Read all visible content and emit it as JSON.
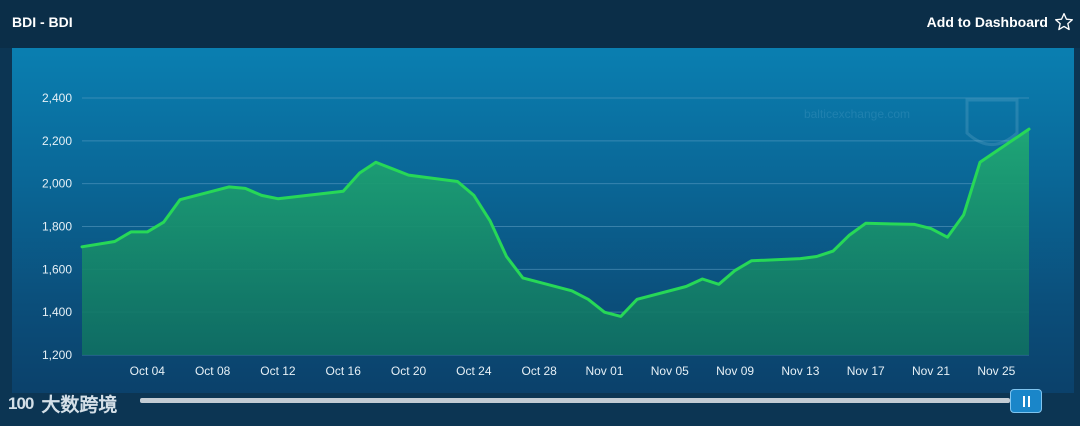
{
  "header": {
    "title": "BDI - BDI",
    "add_to_dashboard": "Add to Dashboard"
  },
  "watermark": {
    "site": "balticexchange.com"
  },
  "logo": {
    "mark": "100",
    "text": "大数跨境"
  },
  "colors": {
    "line": "#27d857",
    "area": "#1a9a6c",
    "grid": "#5d9ec4",
    "tick": "#e6f0f6"
  },
  "chart_data": {
    "type": "area",
    "title": "BDI - BDI",
    "xlabel": "",
    "ylabel": "",
    "ylim": [
      1200,
      2400
    ],
    "yticks": [
      1200,
      1400,
      1600,
      1800,
      2000,
      2200,
      2400
    ],
    "ytick_labels": [
      "1,200",
      "1,400",
      "1,600",
      "1,800",
      "2,000",
      "2,200",
      "2,400"
    ],
    "xticks": [
      "Oct 04",
      "Oct 08",
      "Oct 12",
      "Oct 16",
      "Oct 20",
      "Oct 24",
      "Oct 28",
      "Nov 01",
      "Nov 05",
      "Nov 09",
      "Nov 13",
      "Nov 17",
      "Nov 21",
      "Nov 25"
    ],
    "grid": true,
    "legend": "none",
    "series": [
      {
        "x": [
          "Sep 30",
          "Oct 02",
          "Oct 03",
          "Oct 04",
          "Oct 05",
          "Oct 06",
          "Oct 09",
          "Oct 10",
          "Oct 11",
          "Oct 12",
          "Oct 16",
          "Oct 17",
          "Oct 18",
          "Oct 19",
          "Oct 20",
          "Oct 23",
          "Oct 24",
          "Oct 25",
          "Oct 26",
          "Oct 27",
          "Oct 30",
          "Oct 31",
          "Nov 01",
          "Nov 02",
          "Nov 03",
          "Nov 06",
          "Nov 07",
          "Nov 08",
          "Nov 09",
          "Nov 10",
          "Nov 13",
          "Nov 14",
          "Nov 15",
          "Nov 16",
          "Nov 17",
          "Nov 20",
          "Nov 21",
          "Nov 22",
          "Nov 23",
          "Nov 24",
          "Nov 27"
        ],
        "values": [
          1705,
          1730,
          1775,
          1775,
          1820,
          1925,
          1985,
          1978,
          1945,
          1930,
          1965,
          2050,
          2100,
          2070,
          2040,
          2010,
          1945,
          1825,
          1660,
          1560,
          1500,
          1460,
          1400,
          1380,
          1460,
          1520,
          1555,
          1530,
          1595,
          1640,
          1650,
          1660,
          1685,
          1760,
          1815,
          1810,
          1790,
          1750,
          1855,
          2100,
          2255
        ]
      }
    ]
  }
}
